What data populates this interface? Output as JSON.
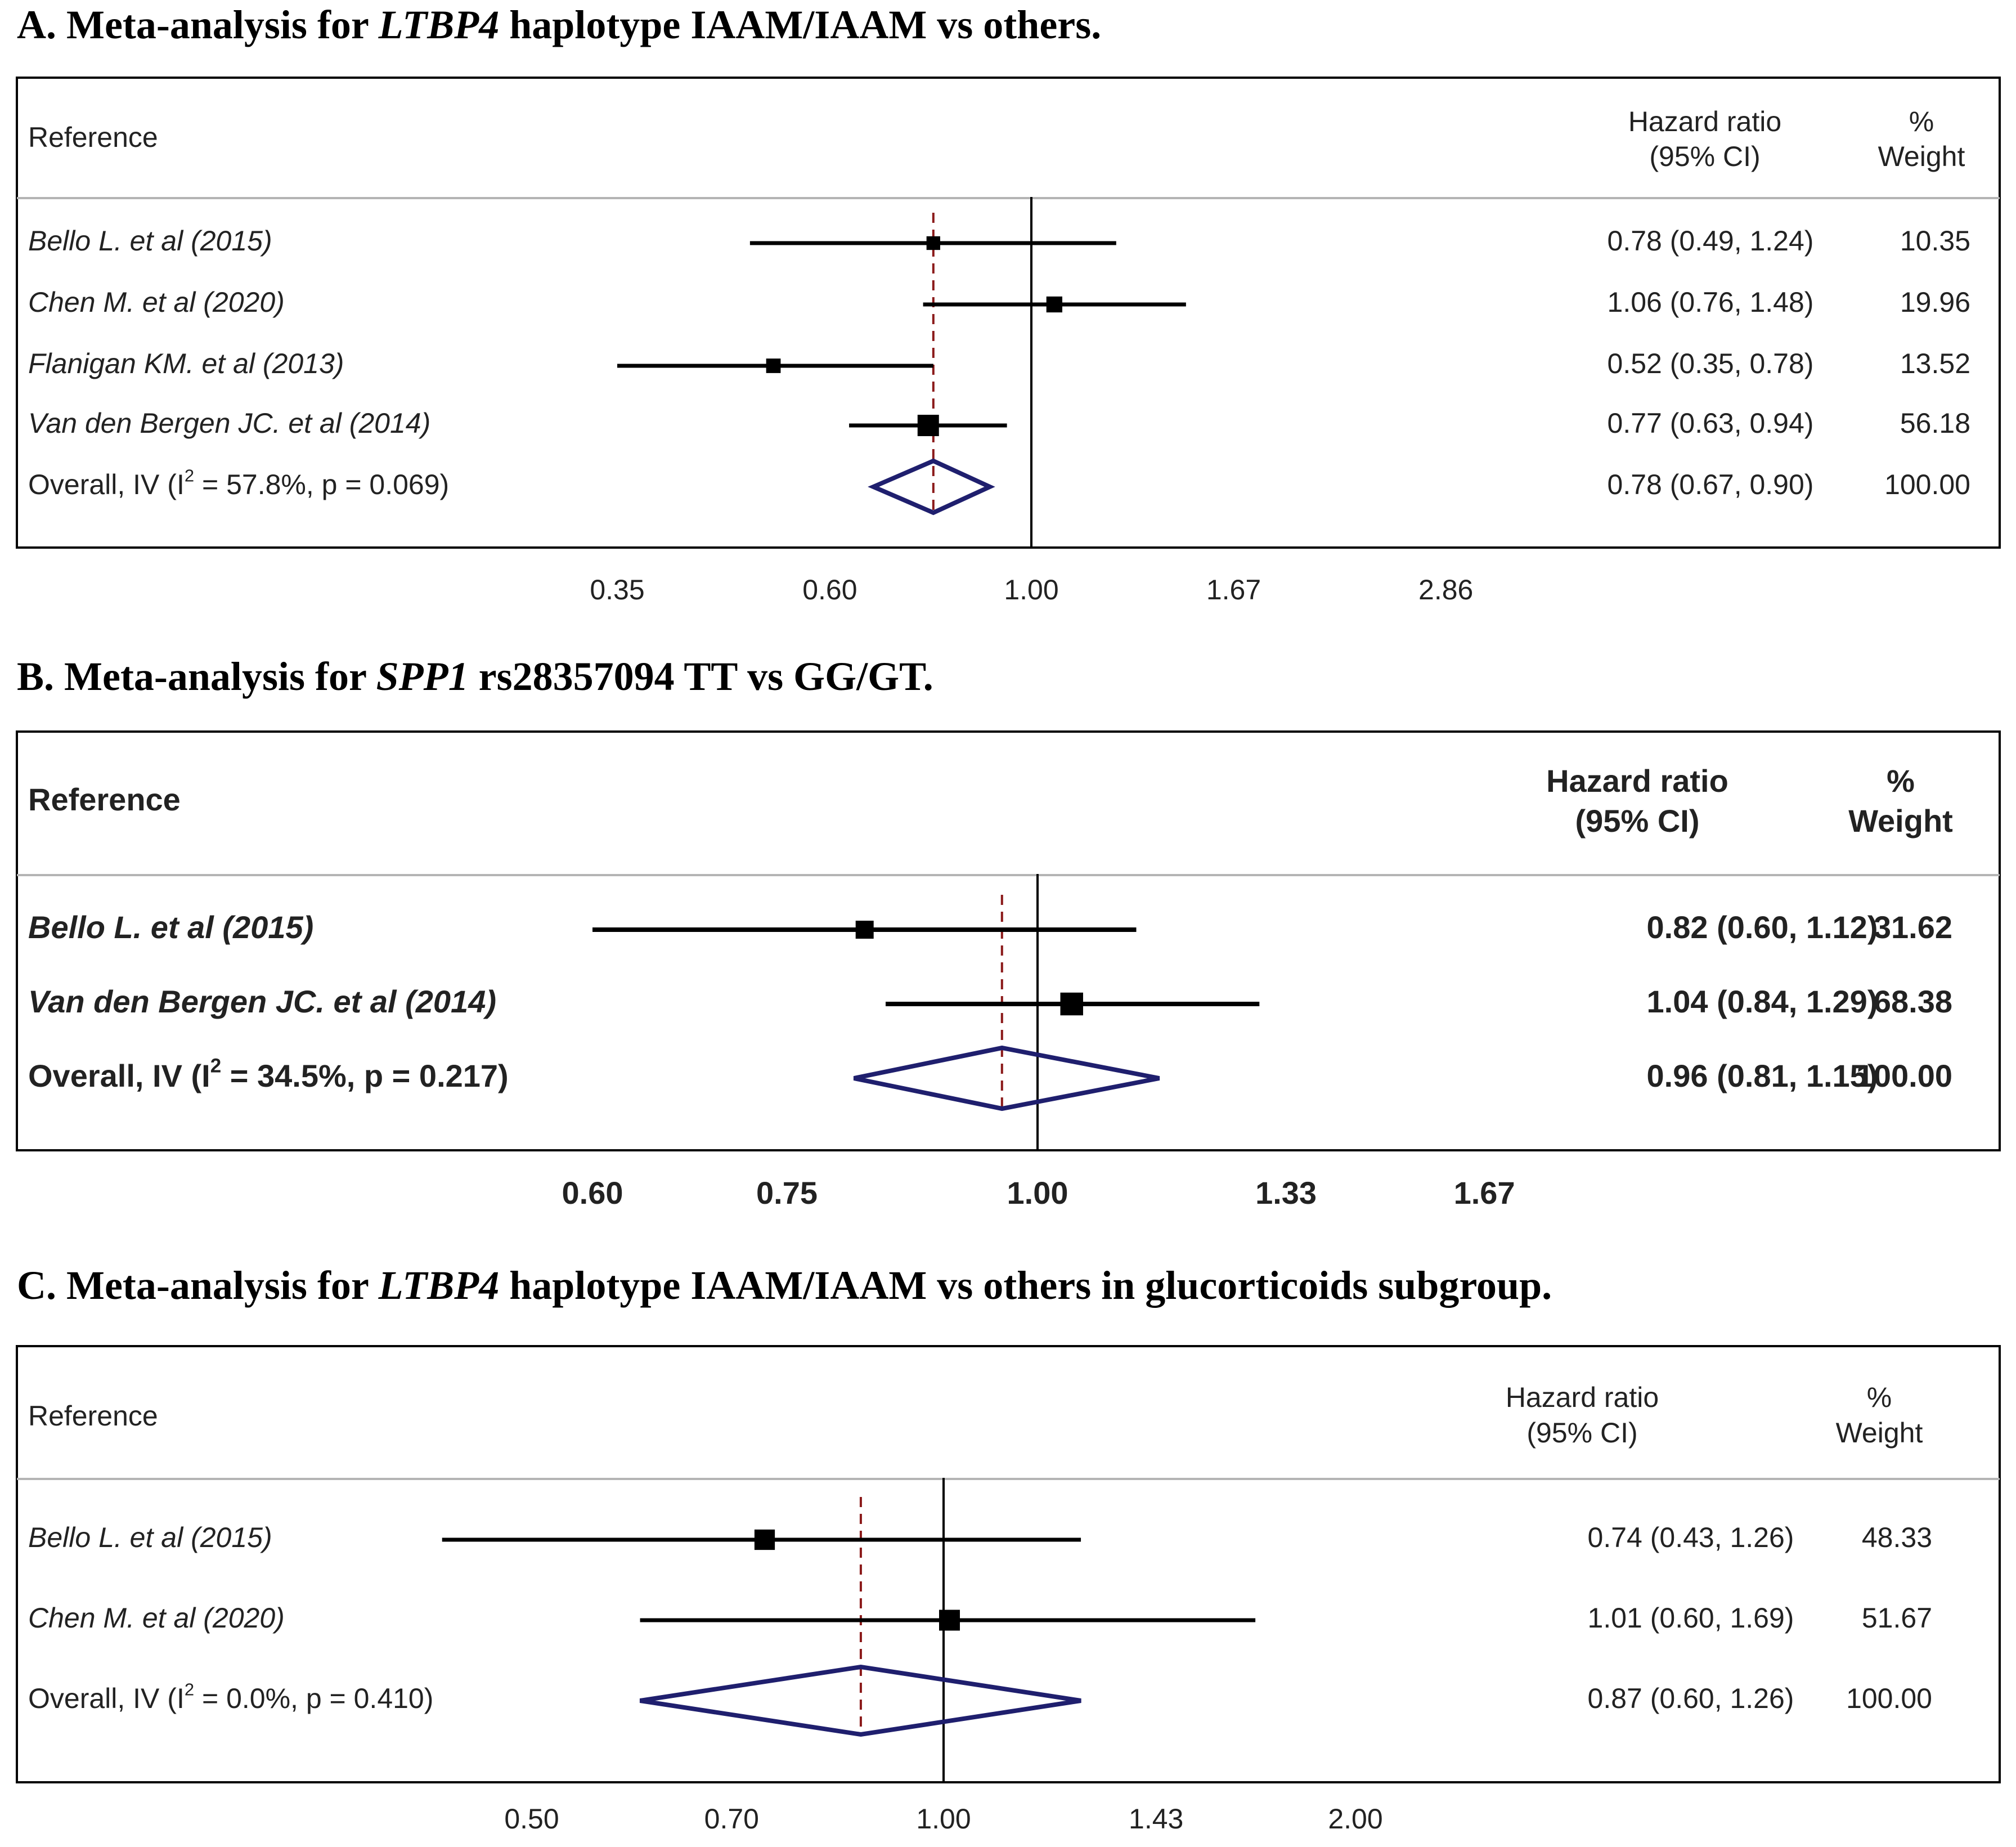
{
  "chart_data": [
    {
      "type": "forest",
      "title": {
        "label": "A. Meta-analysis for",
        "gene": "LTBP4",
        "rest": "haplotype IAAM/IAAM vs others."
      },
      "bold": false,
      "header": {
        "reference": "Reference",
        "hr_line1": "Hazard ratio",
        "hr_line2": "(95% CI)",
        "w_line1": "%",
        "w_line2": "Weight"
      },
      "xaxis": {
        "scale": "log",
        "ticks": [
          0.35,
          0.6,
          1.0,
          1.67,
          2.86
        ],
        "tick_labels": [
          "0.35",
          "0.60",
          "1.00",
          "1.67",
          "2.86"
        ],
        "null_value": 1.0
      },
      "studies": [
        {
          "name": "Bello L. et al (2015)",
          "hr": 0.78,
          "lower": 0.49,
          "upper": 1.24,
          "ci_text": "0.78 (0.49, 1.24)",
          "weight": 10.35,
          "weight_text": "10.35"
        },
        {
          "name": "Chen M. et al (2020)",
          "hr": 1.06,
          "lower": 0.76,
          "upper": 1.48,
          "ci_text": "1.06 (0.76, 1.48)",
          "weight": 19.96,
          "weight_text": "19.96"
        },
        {
          "name": "Flanigan KM. et al (2013)",
          "hr": 0.52,
          "lower": 0.35,
          "upper": 0.78,
          "ci_text": "0.52 (0.35, 0.78)",
          "weight": 13.52,
          "weight_text": "13.52"
        },
        {
          "name": "Van den Bergen JC. et al (2014)",
          "hr": 0.77,
          "lower": 0.63,
          "upper": 0.94,
          "ci_text": "0.77 (0.63, 0.94)",
          "weight": 56.18,
          "weight_text": "56.18"
        }
      ],
      "overall": {
        "label_prefix": "Overall, IV (I",
        "label_sup": "2",
        "label_suffix": " = 57.8%, p = 0.069)",
        "hr": 0.78,
        "lower": 0.67,
        "upper": 0.9,
        "ci_text": "0.78 (0.67, 0.90)",
        "weight_text": "100.00"
      }
    },
    {
      "type": "forest",
      "title": {
        "label": "B. Meta-analysis for",
        "gene": "SPP1",
        "rest": "rs28357094 TT vs GG/GT."
      },
      "bold": true,
      "header": {
        "reference": "Reference",
        "hr_line1": "Hazard ratio",
        "hr_line2": "(95% CI)",
        "w_line1": "%",
        "w_line2": "Weight"
      },
      "xaxis": {
        "scale": "log",
        "ticks": [
          0.6,
          0.75,
          1.0,
          1.33,
          1.67
        ],
        "tick_labels": [
          "0.60",
          "0.75",
          "1.00",
          "1.33",
          "1.67"
        ],
        "null_value": 1.0
      },
      "studies": [
        {
          "name": "Bello L. et al (2015)",
          "hr": 0.82,
          "lower": 0.6,
          "upper": 1.12,
          "ci_text": "0.82 (0.60, 1.12)",
          "weight": 31.62,
          "weight_text": "31.62"
        },
        {
          "name": "Van den Bergen JC. et al (2014)",
          "hr": 1.04,
          "lower": 0.84,
          "upper": 1.29,
          "ci_text": "1.04 (0.84, 1.29)",
          "weight": 68.38,
          "weight_text": "68.38"
        }
      ],
      "overall": {
        "label_prefix": "Overall, IV (I",
        "label_sup": "2",
        "label_suffix": " = 34.5%, p = 0.217)",
        "hr": 0.96,
        "lower": 0.81,
        "upper": 1.15,
        "ci_text": "0.96 (0.81, 1.15)",
        "weight_text": "100.00"
      }
    },
    {
      "type": "forest",
      "title": {
        "label": "C. Meta-analysis for",
        "gene": "LTBP4",
        "rest": "haplotype IAAM/IAAM vs others in glucorticoids subgroup."
      },
      "bold": false,
      "header": {
        "reference": "Reference",
        "hr_line1": "Hazard ratio",
        "hr_line2": "(95% CI)",
        "w_line1": "%",
        "w_line2": "Weight"
      },
      "xaxis": {
        "scale": "log",
        "ticks": [
          0.5,
          0.7,
          1.0,
          1.43,
          2.0
        ],
        "tick_labels": [
          "0.50",
          "0.70",
          "1.00",
          "1.43",
          "2.00"
        ],
        "null_value": 1.0
      },
      "studies": [
        {
          "name": "Bello L. et al (2015)",
          "hr": 0.74,
          "lower": 0.43,
          "upper": 1.26,
          "ci_text": "0.74 (0.43, 1.26)",
          "weight": 48.33,
          "weight_text": "48.33"
        },
        {
          "name": "Chen M. et al (2020)",
          "hr": 1.01,
          "lower": 0.6,
          "upper": 1.69,
          "ci_text": "1.01 (0.60, 1.69)",
          "weight": 51.67,
          "weight_text": "51.67"
        }
      ],
      "overall": {
        "label_prefix": "Overall, IV (I",
        "label_sup": "2",
        "label_suffix": " = 0.0%, p = 0.410)",
        "hr": 0.87,
        "lower": 0.6,
        "upper": 1.26,
        "ci_text": "0.87 (0.60, 1.26)",
        "weight_text": "100.00"
      }
    }
  ],
  "colors": {
    "line": "#000000",
    "diamond": "#1f1f6e",
    "reference_line": "#8b1a1a",
    "separator": "#b4b4b4"
  }
}
